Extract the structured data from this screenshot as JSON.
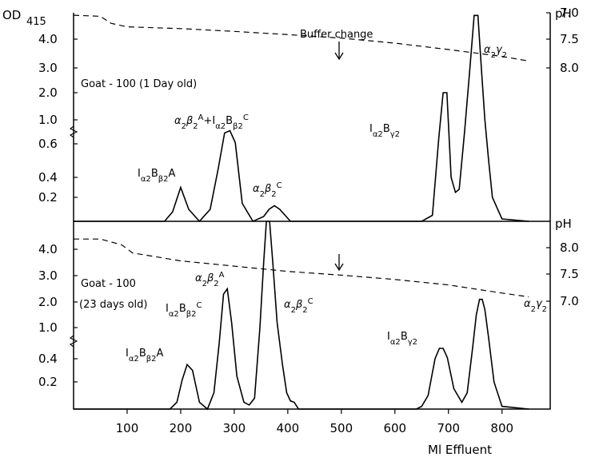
{
  "chart_data": {
    "type": "line",
    "x_axis": {
      "ticks": [
        100,
        200,
        300,
        400,
        500,
        600,
        700,
        800
      ],
      "tick_labels": [
        "100",
        "200",
        "300",
        "400",
        "500",
        "600",
        "700",
        "800"
      ],
      "label": "Ml Effluent",
      "range": [
        0,
        890
      ]
    },
    "od_axis_label": "OD",
    "od_axis_label_sub": "415",
    "ph_axis_label": "pH",
    "od_tick_labels": [
      "4.0",
      "3.0",
      "2.0",
      "1.0",
      "0.6",
      "0.4",
      "0.2"
    ],
    "od_tick_labels_upper": [
      "4.0",
      "3.0",
      "2.0",
      "1.0",
      "0.6",
      "0.4",
      "0.2"
    ],
    "od_tick_labels_lower": [
      "4.0",
      "3.0",
      "2.0",
      "1.0",
      "0.4",
      "0.2"
    ],
    "ph_tick_labels": [
      "8.0",
      "7.5",
      "7.0"
    ],
    "panels": [
      {
        "sample_label": "Goat - 100 (1 Day old)",
        "marker_label": "Buffer change",
        "marker_x": 495,
        "series": [
          {
            "name": "OD415",
            "x": [
              0,
              170,
              185,
              200,
              215,
              235,
              255,
              270,
              282,
              292,
              302,
              315,
              335,
              355,
              365,
              375,
              385,
              405,
              420,
              650,
              670,
              682,
              690,
              697,
              705,
              713,
              720,
              730,
              740,
              748,
              755,
              762,
              768,
              775,
              782,
              800,
              850
            ],
            "y": [
              0,
              0,
              0.08,
              0.3,
              0.1,
              0,
              0.1,
              0.45,
              0.78,
              0.82,
              0.62,
              0.15,
              0,
              0.04,
              0.1,
              0.13,
              0.1,
              0,
              0,
              0,
              0.05,
              0.7,
              2.0,
              2.0,
              0.4,
              0.25,
              0.28,
              0.8,
              3.0,
              4.9,
              4.9,
              2.8,
              1.0,
              0.5,
              0.2,
              0.02,
              0
            ]
          },
          {
            "name": "pH",
            "x": [
              0,
              50,
              70,
              100,
              200,
              300,
              400,
              500,
              600,
              700,
              800,
              850
            ],
            "y": [
              8.18,
              8.15,
              7.95,
              7.85,
              7.8,
              7.72,
              7.63,
              7.53,
              7.43,
              7.32,
              7.2,
              7.12
            ]
          }
        ],
        "annotations": [
          "Iα2Bβ2A",
          "α2β2A+Iα2Bβ2C",
          "α2β2C",
          "Iα2Bγ2",
          "α2γ2"
        ]
      },
      {
        "sample_label_line1": "Goat - 100",
        "sample_label_line2": "(23 days old)",
        "series": [
          {
            "name": "OD415",
            "x": [
              0,
              180,
              193,
              203,
              212,
              222,
              235,
              250,
              262,
              272,
              280,
              287,
              295,
              305,
              318,
              328,
              338,
              348,
              355,
              360,
              366,
              372,
              380,
              390,
              398,
              405,
              412,
              420,
              640,
              650,
              662,
              675,
              683,
              690,
              698,
              710,
              725,
              735,
              745,
              752,
              758,
              763,
              768,
              775,
              785,
              800,
              850
            ],
            "y": [
              0,
              0,
              0.05,
              0.22,
              0.35,
              0.3,
              0.05,
              0,
              0.12,
              0.7,
              2.3,
              2.5,
              1.2,
              0.25,
              0.05,
              0.03,
              0.08,
              1.0,
              3.5,
              5.0,
              5.0,
              3.5,
              1.2,
              0.35,
              0.12,
              0.06,
              0.05,
              0,
              0,
              0.02,
              0.1,
              0.4,
              0.6,
              0.6,
              0.42,
              0.15,
              0.05,
              0.12,
              0.6,
              1.5,
              2.1,
              2.1,
              1.7,
              0.8,
              0.2,
              0.02,
              0
            ]
          },
          {
            "name": "pH",
            "x": [
              0,
              50,
              90,
              110,
              200,
              300,
              400,
              500,
              600,
              700,
              800,
              850
            ],
            "y": [
              8.25,
              8.25,
              8.08,
              7.9,
              7.75,
              7.65,
              7.55,
              7.48,
              7.4,
              7.3,
              7.15,
              7.08
            ]
          }
        ],
        "annotations": [
          "α2β2A",
          "Iα2Bβ2C",
          "α2β2C",
          "Iα2Bβ2A",
          "Iα2Bγ2",
          "α2γ2"
        ]
      }
    ]
  }
}
